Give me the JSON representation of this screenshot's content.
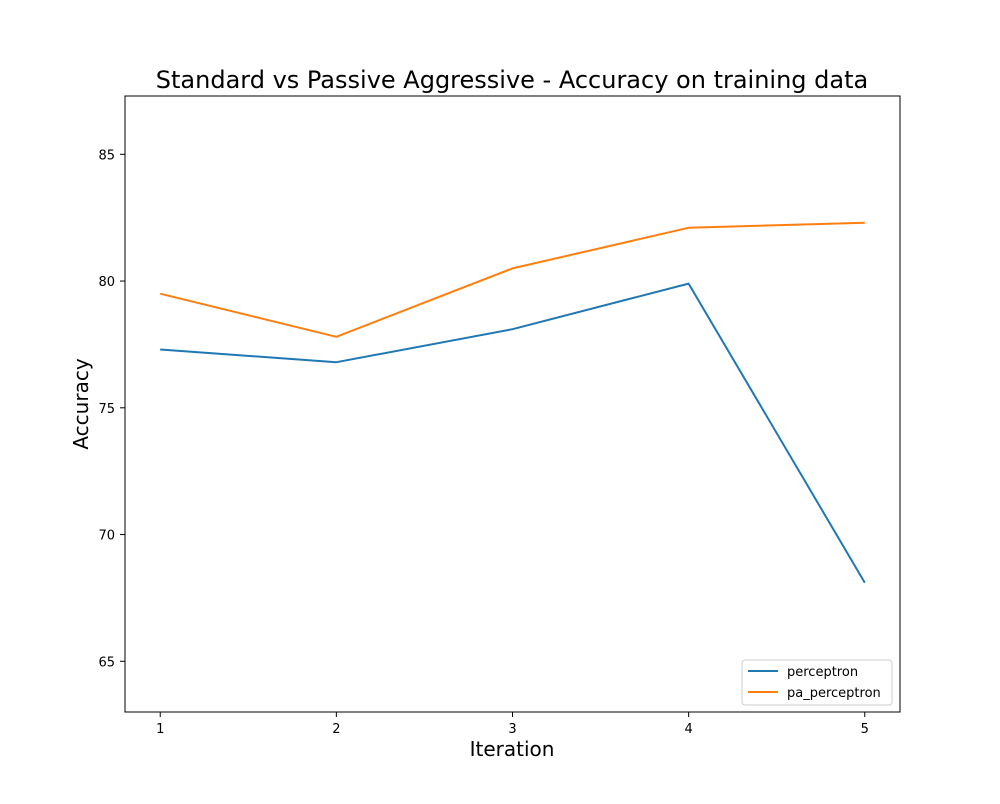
{
  "chart_data": {
    "type": "line",
    "title": "Standard vs Passive Aggressive - Accuracy on training data",
    "xlabel": "Iteration",
    "ylabel": "Accuracy",
    "x": [
      1,
      2,
      3,
      4,
      5
    ],
    "x_ticks": [
      "1",
      "2",
      "3",
      "4",
      "5"
    ],
    "xlim": [
      0.8,
      5.2
    ],
    "y_ticks": [
      "65",
      "70",
      "75",
      "80",
      "85"
    ],
    "y_tick_values": [
      65,
      70,
      75,
      80,
      85
    ],
    "ylim": [
      63.0,
      87.3
    ],
    "grid": false,
    "legend_position": "lower-right",
    "series": [
      {
        "name": "perceptron",
        "color": "#1f77b4",
        "values": [
          77.3,
          76.8,
          78.1,
          79.9,
          68.1
        ]
      },
      {
        "name": "pa_perceptron",
        "color": "#ff7f0e",
        "values": [
          79.5,
          77.8,
          80.5,
          82.1,
          82.3
        ]
      }
    ]
  }
}
